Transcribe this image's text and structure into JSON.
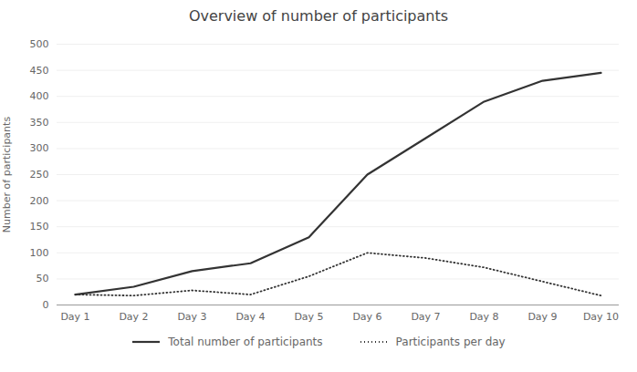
{
  "chart_data": {
    "type": "line",
    "title": "Overview of number of participants",
    "ylabel": "Number of participants",
    "categories": [
      "Day 1",
      "Day 2",
      "Day 3",
      "Day 4",
      "Day 5",
      "Day 6",
      "Day 7",
      "Day 8",
      "Day 9",
      "Day 10"
    ],
    "series": [
      {
        "name": "Total number of participants",
        "color": "#333333",
        "line_style": "solid",
        "values": [
          20,
          35,
          65,
          80,
          130,
          250,
          320,
          390,
          430,
          445
        ]
      },
      {
        "name": "Participants per day",
        "color": "#333333",
        "line_style": "dotted",
        "values": [
          20,
          18,
          28,
          20,
          55,
          100,
          90,
          72,
          45,
          18
        ]
      }
    ],
    "ylim": [
      0,
      500
    ],
    "yticks": [
      0,
      50,
      100,
      150,
      200,
      250,
      300,
      350,
      400,
      450,
      500
    ],
    "grid": true,
    "legend": "bottom"
  }
}
